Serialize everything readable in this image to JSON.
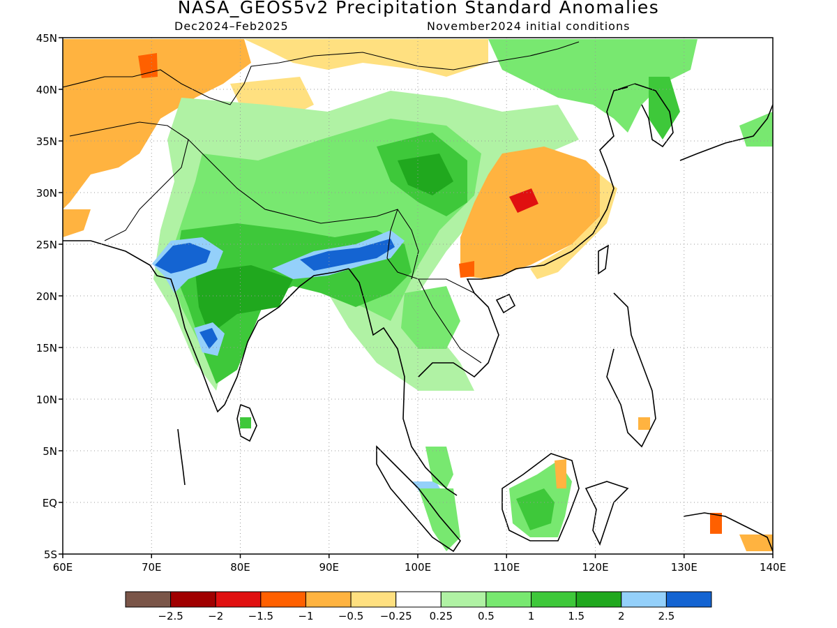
{
  "title": "NASA_GEOS5v2 Precipitation Standard Anomalies",
  "subtitle_left": "Dec2024–Feb2025",
  "subtitle_right": "November2024 initial conditions",
  "map": {
    "lon_range": [
      60,
      140
    ],
    "lat_range": [
      -5,
      45
    ],
    "x_ticks": [
      "60E",
      "70E",
      "80E",
      "90E",
      "100E",
      "110E",
      "120E",
      "130E",
      "140E"
    ],
    "y_ticks": [
      "45N",
      "40N",
      "35N",
      "30N",
      "25N",
      "20N",
      "15N",
      "10N",
      "5N",
      "EQ",
      "5S"
    ],
    "grid": "dotted"
  },
  "legend": {
    "colors": [
      "#7a5548",
      "#a00000",
      "#e01010",
      "#ff6000",
      "#ffb340",
      "#ffe080",
      "#ffffff",
      "#b0f2a4",
      "#78e870",
      "#3ec83a",
      "#20a81e",
      "#94d0fa",
      "#1464d2"
    ],
    "labels": [
      "−2.5",
      "−2",
      "−1.5",
      "−1",
      "−0.5",
      "−0.25",
      "0.25",
      "0.5",
      "1",
      "1.5",
      "2",
      "2.5"
    ]
  }
}
